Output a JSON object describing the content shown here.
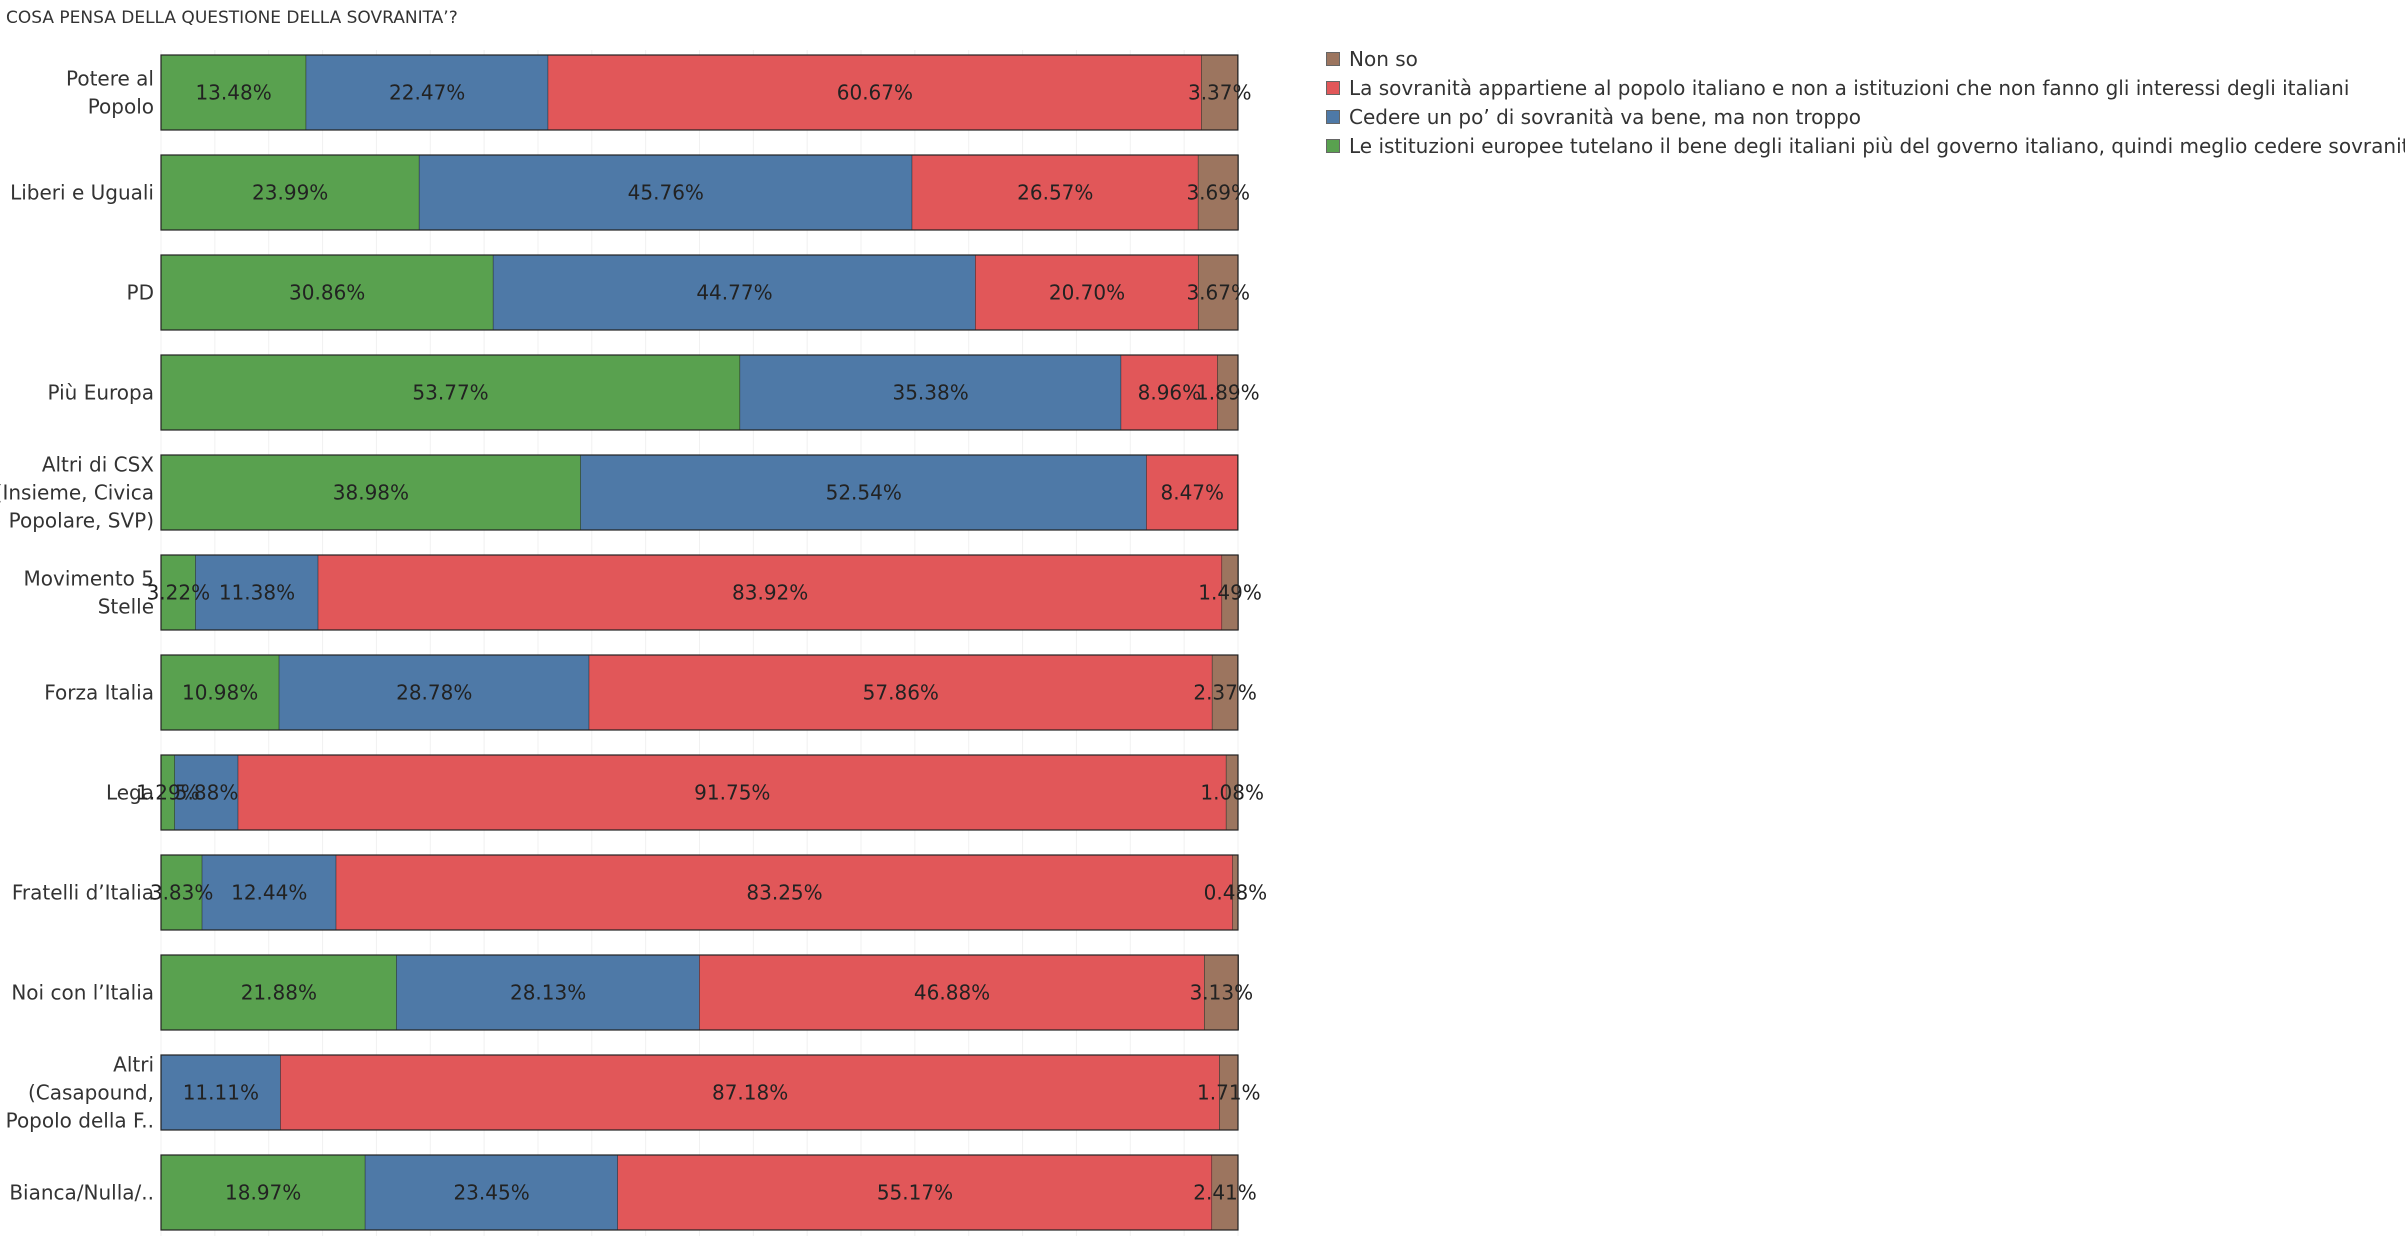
{
  "chart_data": {
    "type": "bar",
    "orientation": "horizontal",
    "stacked": true,
    "title": "COSA PENSA DELLA QUESTIONE DELLA SOVRANITA’?",
    "categories": [
      [
        "Potere al",
        "Popolo"
      ],
      [
        "Liberi e Uguali"
      ],
      [
        "PD"
      ],
      [
        "Più Europa"
      ],
      [
        "Altri di CSX",
        "(Insieme, Civica",
        "Popolare, SVP)"
      ],
      [
        "Movimento 5",
        "Stelle"
      ],
      [
        "Forza Italia"
      ],
      [
        "Lega"
      ],
      [
        "Fratelli d’Italia"
      ],
      [
        "Noi con l’Italia"
      ],
      [
        "Altri",
        "(Casapound,",
        "Popolo della F.."
      ],
      [
        "Bianca/Nulla/.."
      ]
    ],
    "series": [
      {
        "name": "Le istituzioni europee tutelano il bene degli italiani più del governo italiano, quindi meglio cedere sovranità",
        "color": "#59a14f",
        "values": [
          13.48,
          23.99,
          30.86,
          53.77,
          38.98,
          3.22,
          10.98,
          1.29,
          3.83,
          21.88,
          0,
          18.97
        ],
        "labels": [
          "13.48%",
          "23.99%",
          "30.86%",
          "53.77%",
          "38.98%",
          "3.22%",
          "10.98%",
          "1.29%",
          "3.83%",
          "21.88%",
          "",
          "18.97%"
        ]
      },
      {
        "name": "Cedere un po’ di sovranità  va bene, ma non troppo",
        "color": "#4e79a7",
        "values": [
          22.47,
          45.76,
          44.77,
          35.38,
          52.54,
          11.38,
          28.78,
          5.88,
          12.44,
          28.13,
          11.11,
          23.45
        ],
        "labels": [
          "22.47%",
          "45.76%",
          "44.77%",
          "35.38%",
          "52.54%",
          "11.38%",
          "28.78%",
          "5.88%",
          "12.44%",
          "28.13%",
          "11.11%",
          "23.45%"
        ]
      },
      {
        "name": "La sovranità  appartiene al popolo italiano e non a istituzioni che non fanno gli interessi degli italiani",
        "color": "#e15759",
        "values": [
          60.67,
          26.57,
          20.7,
          8.96,
          8.47,
          83.92,
          57.86,
          91.75,
          83.25,
          46.88,
          87.18,
          55.17
        ],
        "labels": [
          "60.67%",
          "26.57%",
          "20.70%",
          "8.96%",
          "8.47%",
          "83.92%",
          "57.86%",
          "91.75%",
          "83.25%",
          "46.88%",
          "87.18%",
          "55.17%"
        ]
      },
      {
        "name": "Non so",
        "color": "#9c755f",
        "values": [
          3.37,
          3.69,
          3.67,
          1.89,
          0,
          1.49,
          2.37,
          1.08,
          0.48,
          3.13,
          1.71,
          2.41
        ],
        "labels": [
          "3.37%",
          "3.69%",
          "3.67%",
          "1.89%",
          "",
          "1.49%",
          "2.37%",
          "1.08%",
          "0.48%",
          "3.13%",
          "1.71%",
          "2.41%"
        ]
      }
    ],
    "legend_order": [
      3,
      2,
      1,
      0
    ],
    "xlim": [
      0,
      100
    ],
    "legend_position": "top-right",
    "grid": true
  }
}
